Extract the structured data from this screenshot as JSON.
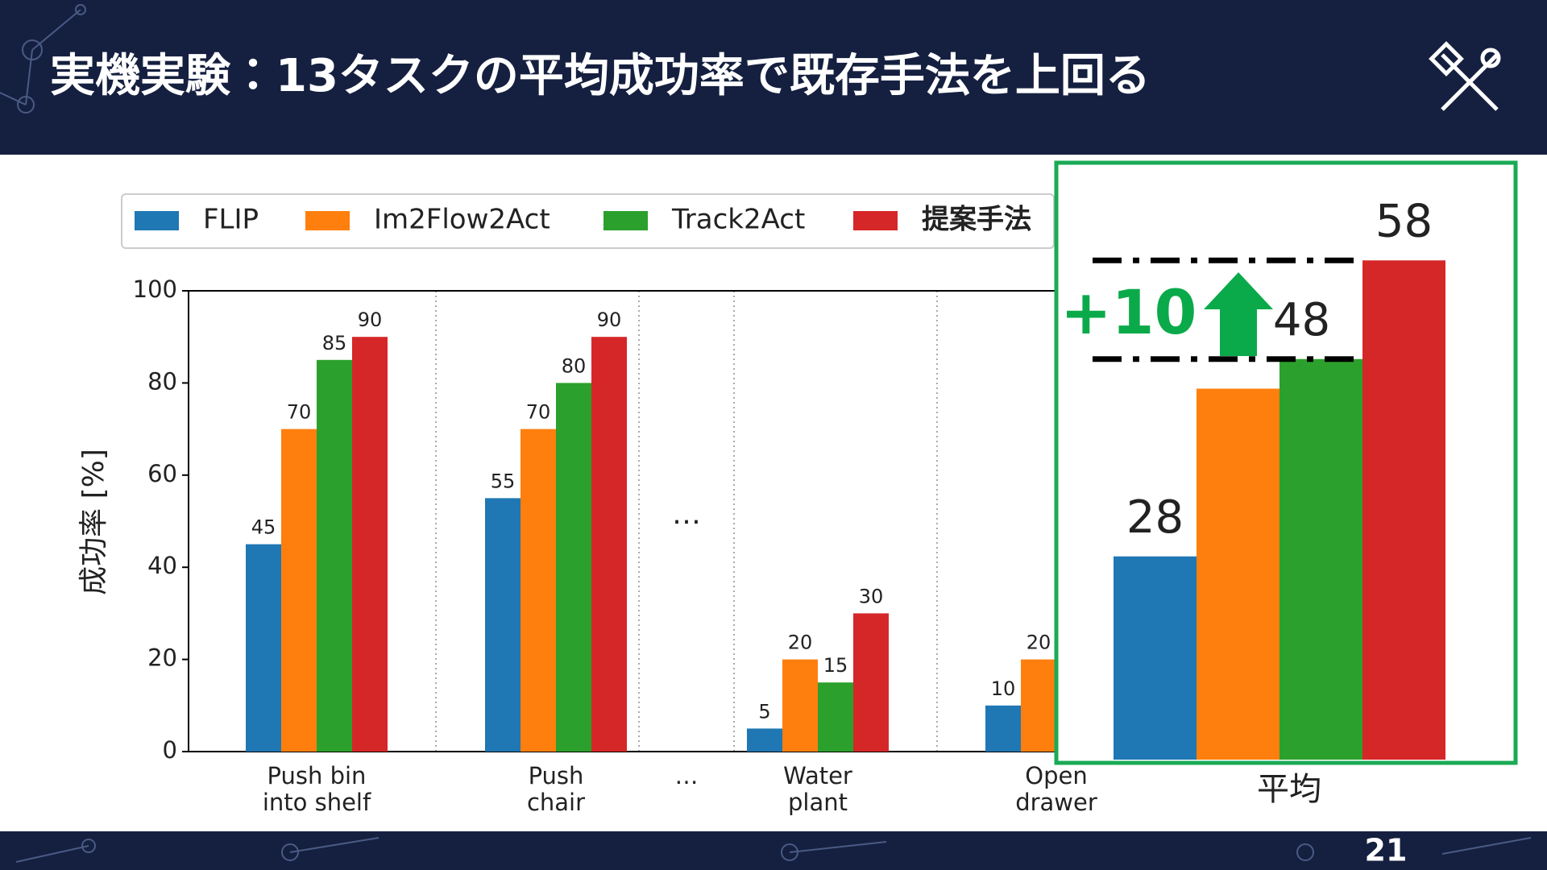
{
  "header": {
    "title": "実機実験：13タスクの平均成功率で既存手法を上回る"
  },
  "page_number": "21",
  "chart_data": [
    {
      "type": "bar",
      "categories": [
        "Push bin\ninto shelf",
        "Push\nchair",
        "…",
        "Water\nplant",
        "Open\ndrawer"
      ],
      "series": [
        {
          "name": "FLIP",
          "color": "#1f77b4",
          "values": [
            45,
            55,
            null,
            5,
            10
          ]
        },
        {
          "name": "Im2Flow2Act",
          "color": "#ff7f0e",
          "values": [
            70,
            70,
            null,
            20,
            20
          ]
        },
        {
          "name": "Track2Act",
          "color": "#2ca02c",
          "values": [
            85,
            80,
            null,
            15,
            null
          ]
        },
        {
          "name": "提案手法",
          "color": "#d62728",
          "values": [
            90,
            90,
            null,
            30,
            null
          ]
        }
      ],
      "y_label": "成功率 [%]",
      "annotation": "…",
      "ylim": [
        0,
        100
      ],
      "yticks": [
        0,
        20,
        40,
        60,
        80,
        100
      ],
      "legend": "top"
    },
    {
      "type": "bar",
      "categories": [
        "平均"
      ],
      "series": [
        {
          "color": "#1f77b4",
          "values": [
            28
          ]
        },
        {
          "color": "#ff7f0e",
          "values": [
            45
          ],
          "value_labels": [
            null
          ]
        },
        {
          "color": "#2ca02c",
          "values": [
            48
          ]
        },
        {
          "color": "#d62728",
          "values": [
            58
          ]
        }
      ],
      "annotation": "+10",
      "ylim": [
        7.4,
        67.9
      ]
    }
  ]
}
